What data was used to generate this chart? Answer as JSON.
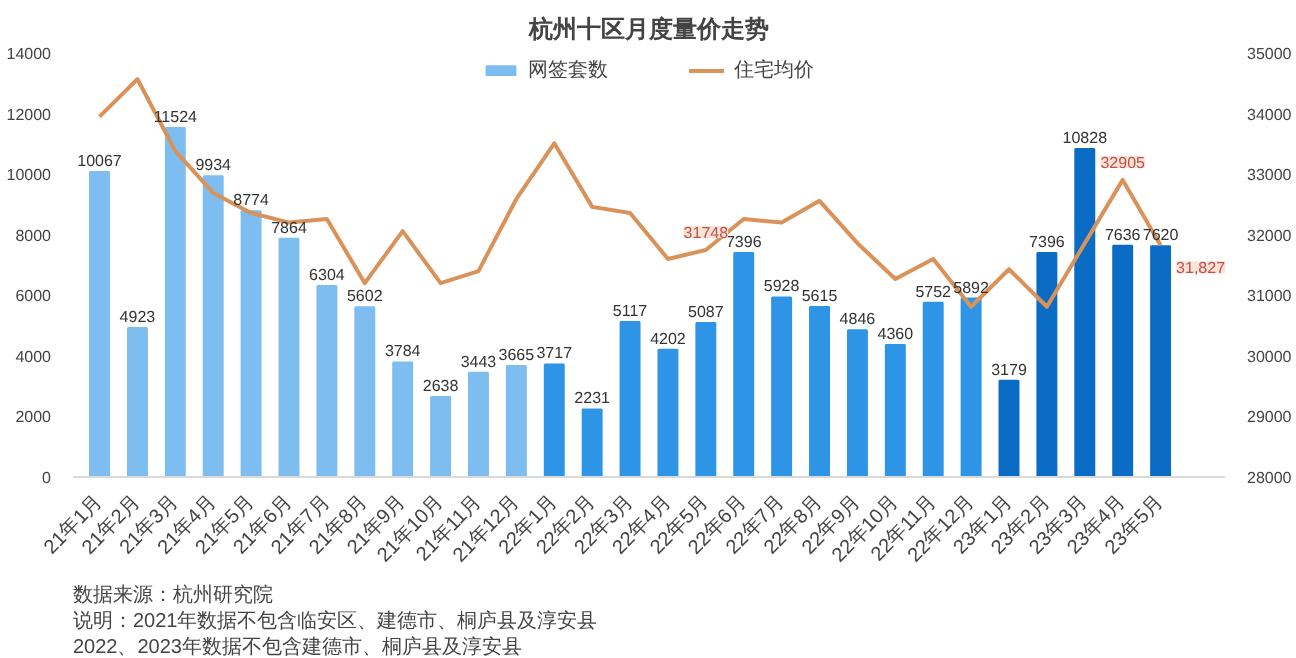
{
  "chart_data": {
    "type": "bar",
    "title": "杭州十区月度量价走势",
    "categories": [
      "21年1月",
      "21年2月",
      "21年3月",
      "21年4月",
      "21年5月",
      "21年6月",
      "21年7月",
      "21年8月",
      "21年9月",
      "21年10月",
      "21年11月",
      "21年12月",
      "22年1月",
      "22年2月",
      "22年3月",
      "22年4月",
      "22年5月",
      "22年6月",
      "22年7月",
      "22年8月",
      "22年9月",
      "22年10月",
      "22年11月",
      "22年12月",
      "23年1月",
      "23年2月",
      "23年3月",
      "23年4月",
      "23年5月"
    ],
    "series": [
      {
        "name": "网签套数",
        "colors": [
          "#7dbdf0",
          "#7dbdf0",
          "#7dbdf0",
          "#7dbdf0",
          "#7dbdf0",
          "#7dbdf0",
          "#7dbdf0",
          "#7dbdf0",
          "#7dbdf0",
          "#7dbdf0",
          "#7dbdf0",
          "#7dbdf0",
          "#2e95e6",
          "#2e95e6",
          "#2e95e6",
          "#2e95e6",
          "#2e95e6",
          "#2e95e6",
          "#2e95e6",
          "#2e95e6",
          "#2e95e6",
          "#2e95e6",
          "#2e95e6",
          "#2e95e6",
          "#0a6cc4",
          "#0a6cc4",
          "#0a6cc4",
          "#0a6cc4",
          "#0a6cc4"
        ],
        "data_labels": true,
        "values": [
          10067,
          4923,
          11524,
          9934,
          8774,
          7864,
          6304,
          5602,
          3784,
          2638,
          3443,
          3665,
          3717,
          2231,
          5117,
          4202,
          5087,
          7396,
          5928,
          5615,
          4846,
          4360,
          5752,
          5892,
          3179,
          7396,
          10828,
          7636,
          7620
        ]
      },
      {
        "name": "住宅均价",
        "type": "line",
        "axis": "y2",
        "color": "#d9935a",
        "values": [
          33950,
          34570,
          33380,
          32690,
          32360,
          32200,
          32260,
          31200,
          32060,
          31200,
          31400,
          32590,
          33510,
          32460,
          32360,
          31600,
          31748,
          32260,
          32200,
          32560,
          31860,
          31270,
          31600,
          30810,
          31430,
          30810,
          31860,
          32905,
          31827
        ],
        "value_labels": [
          null,
          null,
          null,
          null,
          null,
          null,
          null,
          null,
          null,
          null,
          null,
          null,
          null,
          null,
          null,
          null,
          "31748",
          null,
          null,
          null,
          null,
          null,
          null,
          null,
          null,
          null,
          null,
          "32905",
          "31,827"
        ]
      }
    ],
    "ylim": [
      0,
      14000
    ],
    "yticks": [
      0,
      2000,
      4000,
      6000,
      8000,
      10000,
      12000,
      14000
    ],
    "y2lim": [
      28000,
      35000
    ],
    "y2ticks": [
      28000,
      29000,
      30000,
      31000,
      32000,
      33000,
      34000,
      35000
    ],
    "grid": false,
    "legend": "top",
    "marker": "none",
    "line_style": "solid",
    "annotations": [
      "数据来源：杭州研究院",
      "说明：2021年数据不包含临安区、建德市、桐庐县及淳安县",
      "2022、2023年数据不包含建德市、桐庐县及淳安县"
    ]
  }
}
